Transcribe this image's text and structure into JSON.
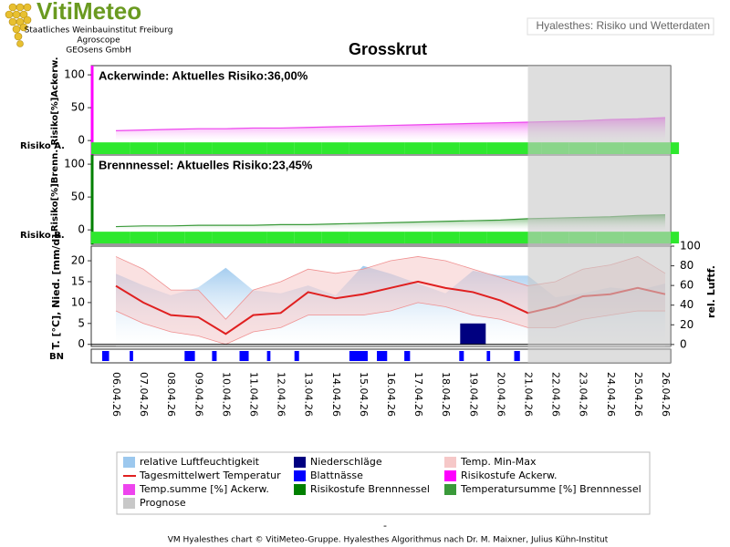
{
  "header": {
    "logo": "VitiMeteo",
    "org_lines": [
      "Staatliches Weinbauinstitut Freiburg",
      "Agroscope",
      "GEOsens GmbH"
    ],
    "app_title": "Hyalesthes: Risiko und Wetterdaten",
    "page_title": "Grosskrut"
  },
  "chart_data": [
    {
      "type": "area",
      "annotation": "Ackerwinde: Aktuelles Risiko:36,00%",
      "ylabel": "Risiko[%]Ackerw.",
      "side_label": "Risiko A.",
      "categories": [
        "06.04.26",
        "07.04.26",
        "08.04.26",
        "09.04.26",
        "10.04.26",
        "11.04.26",
        "12.04.26",
        "13.04.26",
        "14.04.26",
        "15.04.26",
        "16.04.26",
        "17.04.26",
        "18.04.26",
        "19.04.26",
        "20.04.26",
        "21.04.26",
        "22.04.26",
        "23.04.26",
        "24.04.26",
        "25.04.26",
        "26.04.26"
      ],
      "ylim": [
        -22,
        114
      ],
      "yticks": [
        0,
        50,
        100
      ],
      "grid": false,
      "series": [
        {
          "name": "Temp.summe [%] Ackerw.",
          "type": "area",
          "color": "#ee44ee",
          "values": [
            15,
            16,
            17,
            18,
            18,
            19,
            19,
            20,
            21,
            22,
            23,
            24,
            25,
            26,
            27,
            28,
            29,
            30,
            32,
            33,
            35
          ]
        },
        {
          "name": "Risikostufe Ackerw.",
          "type": "band",
          "color": "#ff00ff",
          "band_color": "#2ee82e",
          "values": [
            1,
            1,
            1,
            1,
            1,
            1,
            1,
            1,
            1,
            1,
            1,
            1,
            1,
            1,
            1,
            1,
            1,
            1,
            1,
            1,
            1
          ]
        }
      ]
    },
    {
      "type": "area",
      "annotation": "Brennnessel: Aktuelles Risiko:23,45%",
      "ylabel": "Risiko[%]Brenn.",
      "side_label": "Risiko B.",
      "categories": [
        "06.04.26",
        "07.04.26",
        "08.04.26",
        "09.04.26",
        "10.04.26",
        "11.04.26",
        "12.04.26",
        "13.04.26",
        "14.04.26",
        "15.04.26",
        "16.04.26",
        "17.04.26",
        "18.04.26",
        "19.04.26",
        "20.04.26",
        "21.04.26",
        "22.04.26",
        "23.04.26",
        "24.04.26",
        "25.04.26",
        "26.04.26"
      ],
      "ylim": [
        -22,
        114
      ],
      "yticks": [
        0,
        50,
        100
      ],
      "grid": false,
      "series": [
        {
          "name": "Temperatursumme [%] Brennnessel",
          "type": "area",
          "color": "#3a9a3a",
          "values": [
            5,
            6,
            6,
            7,
            7,
            7,
            8,
            8,
            9,
            10,
            11,
            12,
            13,
            14,
            15,
            17,
            18,
            19,
            20,
            22,
            23
          ]
        },
        {
          "name": "Risikostufe Brennnessel",
          "type": "band",
          "color": "#008000",
          "band_color": "#2ee82e",
          "values": [
            1,
            1,
            1,
            1,
            1,
            1,
            1,
            1,
            1,
            1,
            1,
            1,
            1,
            1,
            1,
            1,
            1,
            1,
            1,
            1,
            1
          ]
        }
      ]
    },
    {
      "type": "combo",
      "ylabel": "T. [°C], Nied. [mm/d]",
      "y2label": "rel. Luftf.",
      "row_label": "BN",
      "categories": [
        "06.04.26",
        "07.04.26",
        "08.04.26",
        "09.04.26",
        "10.04.26",
        "11.04.26",
        "12.04.26",
        "13.04.26",
        "14.04.26",
        "15.04.26",
        "16.04.26",
        "17.04.26",
        "18.04.26",
        "19.04.26",
        "20.04.26",
        "21.04.26",
        "22.04.26",
        "23.04.26",
        "24.04.26",
        "25.04.26",
        "26.04.26"
      ],
      "ylim": [
        -0.5,
        23.5
      ],
      "yticks": [
        0,
        5,
        10,
        15,
        20
      ],
      "y2lim": [
        -2,
        100
      ],
      "y2ticks": [
        0,
        20,
        40,
        60,
        80,
        100
      ],
      "grid": false,
      "series": [
        {
          "name": "relative Luftfeuchtigkeit",
          "type": "area",
          "axis": "y2",
          "color": "#9cc8ee",
          "values": [
            72,
            60,
            50,
            58,
            78,
            55,
            52,
            60,
            50,
            80,
            72,
            62,
            52,
            75,
            70,
            70,
            48,
            52,
            58,
            55,
            62
          ]
        },
        {
          "name": "Temp. Min-Max",
          "type": "range",
          "color": "#f6c8c8",
          "low": [
            8,
            5,
            3,
            2,
            0,
            3,
            4,
            7,
            7,
            7,
            8,
            10,
            9,
            7,
            6,
            4,
            4,
            6,
            7,
            8,
            8
          ],
          "high": [
            21,
            18,
            13,
            13,
            6,
            13,
            15,
            18,
            17,
            18,
            20,
            21,
            20,
            18,
            16,
            14,
            15,
            18,
            19,
            21,
            17
          ]
        },
        {
          "name": "Tagesmittelwert Temperatur",
          "type": "line",
          "color": "#e02020",
          "values": [
            14,
            10,
            7,
            6.5,
            2.5,
            7,
            7.5,
            12.5,
            11,
            12,
            13.5,
            15,
            13.5,
            12.5,
            10.5,
            7.5,
            9,
            11.5,
            12,
            13.5,
            12
          ]
        },
        {
          "name": "Niederschläge",
          "type": "bar",
          "color": "#000080",
          "values": [
            0,
            0,
            0,
            0,
            0,
            0,
            0,
            0,
            0,
            0,
            0,
            0,
            0,
            5,
            0,
            0,
            0,
            0,
            0,
            0,
            0
          ]
        },
        {
          "name": "Blattnässe",
          "type": "wetness",
          "color": "#0000ff",
          "values": [
            6,
            3,
            0,
            9,
            4,
            8,
            3,
            4,
            0,
            16,
            9,
            5,
            0,
            4,
            3,
            5,
            0,
            0,
            0,
            0,
            0
          ]
        }
      ]
    }
  ],
  "prognosis": {
    "name": "Prognose",
    "color": "#c8c8c8",
    "from": "21.04.26"
  },
  "footer": {
    "dash": "-",
    "text": "VM Hyalesthes chart © VitiMeteo-Gruppe. Hyalesthes Algorithmus nach Dr. M. Maixner, Julius Kühn-Institut"
  }
}
